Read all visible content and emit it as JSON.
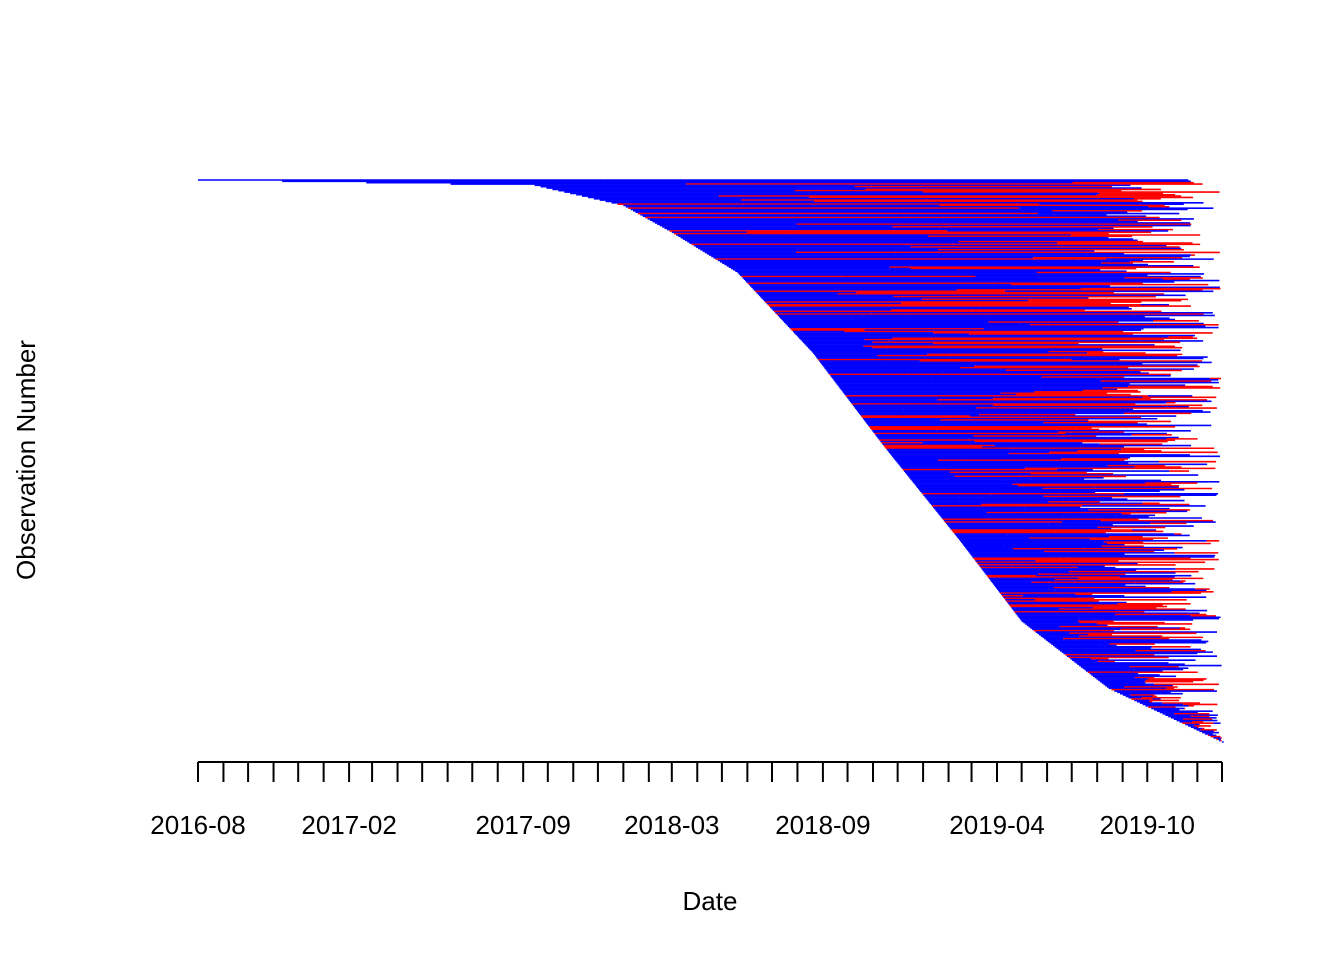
{
  "chart_data": {
    "type": "segment",
    "title": "",
    "xlabel": "Date",
    "ylabel": "Observation Number",
    "x_axis": {
      "type": "date",
      "range": [
        "2016-08-01",
        "2019-12-31"
      ],
      "tick_labels": [
        "2016-08",
        "2017-02",
        "2017-09",
        "2018-03",
        "2018-09",
        "2019-04",
        "2019-10"
      ],
      "minor_ticks": "monthly"
    },
    "y_axis": {
      "shown": false,
      "range": [
        1,
        420
      ]
    },
    "grid": false,
    "legend": "none",
    "colors": {
      "series_a": "#ff0000",
      "series_b": "#0000ff",
      "axis": "#000000"
    },
    "observation_start_profile": [
      {
        "observation": 1,
        "start": "2016-08-01"
      },
      {
        "observation": 5,
        "start": "2017-09-15"
      },
      {
        "observation": 20,
        "start": "2018-01-01"
      },
      {
        "observation": 40,
        "start": "2018-03-01"
      },
      {
        "observation": 70,
        "start": "2018-05-20"
      },
      {
        "observation": 130,
        "start": "2018-08-20"
      },
      {
        "observation": 200,
        "start": "2018-11-15"
      },
      {
        "observation": 270,
        "start": "2019-02-15"
      },
      {
        "observation": 330,
        "start": "2019-05-01"
      },
      {
        "observation": 380,
        "start": "2019-08-15"
      },
      {
        "observation": 420,
        "start": "2019-12-31"
      }
    ],
    "end_range": [
      "2019-07-01",
      "2019-12-31"
    ]
  }
}
